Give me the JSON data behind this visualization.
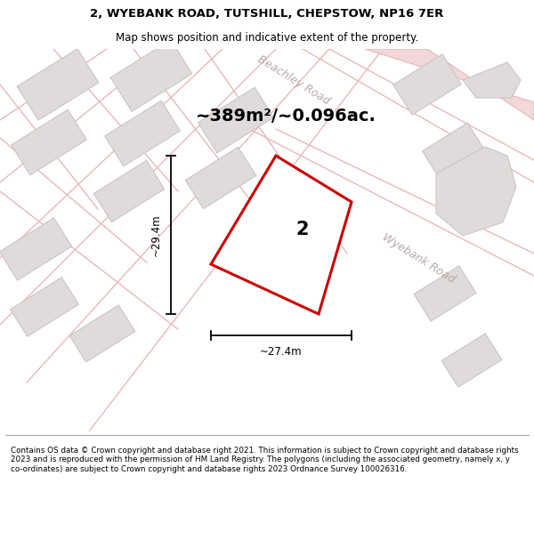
{
  "title_line1": "2, WYEBANK ROAD, TUTSHILL, CHEPSTOW, NP16 7ER",
  "title_line2": "Map shows position and indicative extent of the property.",
  "area_label": "~389m²/~0.096ac.",
  "plot_number": "2",
  "dim_width": "~27.4m",
  "dim_height": "~29.4m",
  "road_label1": "Beachley Road",
  "road_label2": "Wyebank Road",
  "footer": "Contains OS data © Crown copyright and database right 2021. This information is subject to Crown copyright and database rights 2023 and is reproduced with the permission of HM Land Registry. The polygons (including the associated geometry, namely x, y co-ordinates) are subject to Crown copyright and database rights 2023 Ordnance Survey 100026316.",
  "bg_color": "#ffffff",
  "map_bg": "#f7f2f2",
  "plot_color": "#cc0000",
  "plot_fill": "#ffffff",
  "road_color": "#f2d8d8",
  "road_outline": "#e8b8b8",
  "building_face": "#e0dbdb",
  "building_edge": "#c8c0c0",
  "footer_bg": "#ffffff",
  "title_bg": "#ffffff",
  "road_label_color": "#b8a8a8"
}
